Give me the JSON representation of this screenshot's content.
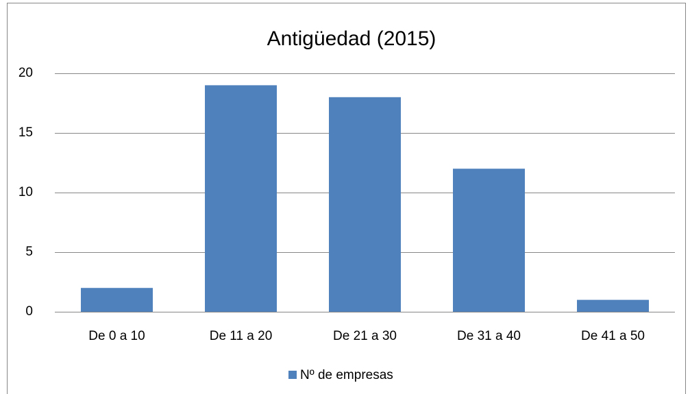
{
  "chart_data": {
    "type": "bar",
    "title": "Antigüedad  (2015)",
    "categories": [
      "De 0 a 10",
      "De 11 a 20",
      "De 21 a 30",
      "De 31 a 40",
      "De 41 a 50"
    ],
    "series": [
      {
        "name": "Nº de empresas",
        "color": "#4f81bd",
        "values": [
          2,
          19,
          18,
          12,
          1
        ]
      }
    ],
    "ylim": [
      0,
      20
    ],
    "yticks": [
      0,
      5,
      10,
      15,
      20
    ],
    "grid": true,
    "legend": "bottom"
  }
}
